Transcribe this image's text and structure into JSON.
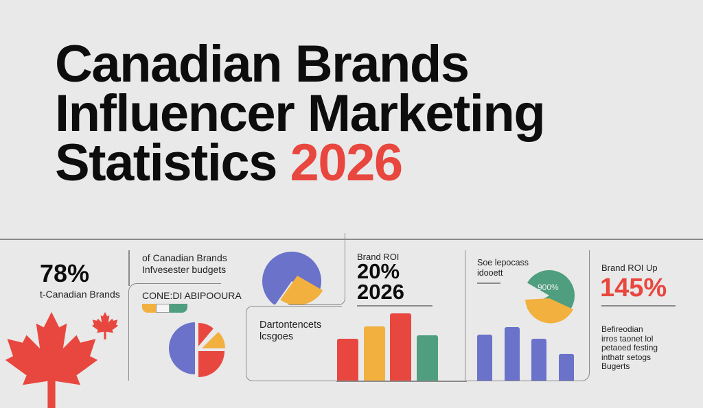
{
  "title": {
    "line1": "Canadian Brands",
    "line2": "Influencer Marketing",
    "line3_text": "Statistics",
    "line3_year": "2026"
  },
  "colors": {
    "background": "#e9e9e9",
    "red": "#e8473f",
    "orange": "#f2b03f",
    "green": "#4f9e7f",
    "purple": "#6b72c9"
  },
  "panel1": {
    "stat": "78%",
    "caption": "t-Canadian Brands",
    "icons": [
      "maple-leaf-icon",
      "maple-leaf-icon"
    ]
  },
  "panel2": {
    "text_line1": "of Canadian Brands",
    "text_line2": "Infvesester budgets",
    "box_label": "CONE:DI ABIPOOURA",
    "box2_line1": "Dartontencets",
    "box2_line2": "lcsgoes"
  },
  "panel3": {
    "label": "Brand ROI",
    "stat": "20%",
    "year": "2026",
    "bars_relative": [
      0.61,
      0.79,
      0.98,
      0.66
    ]
  },
  "panel4": {
    "text_line1": "Soe lepocass",
    "text_line2": "idooett",
    "pie_label": "900%",
    "bars_relative": [
      0.67,
      0.78,
      0.61,
      0.39
    ]
  },
  "panel5": {
    "label": "Brand ROI Up",
    "stat": "145%",
    "body": [
      "Befireodian",
      "irros taonet lol",
      "petaoed festing",
      "inthatr setogs",
      "Bugerts"
    ]
  }
}
